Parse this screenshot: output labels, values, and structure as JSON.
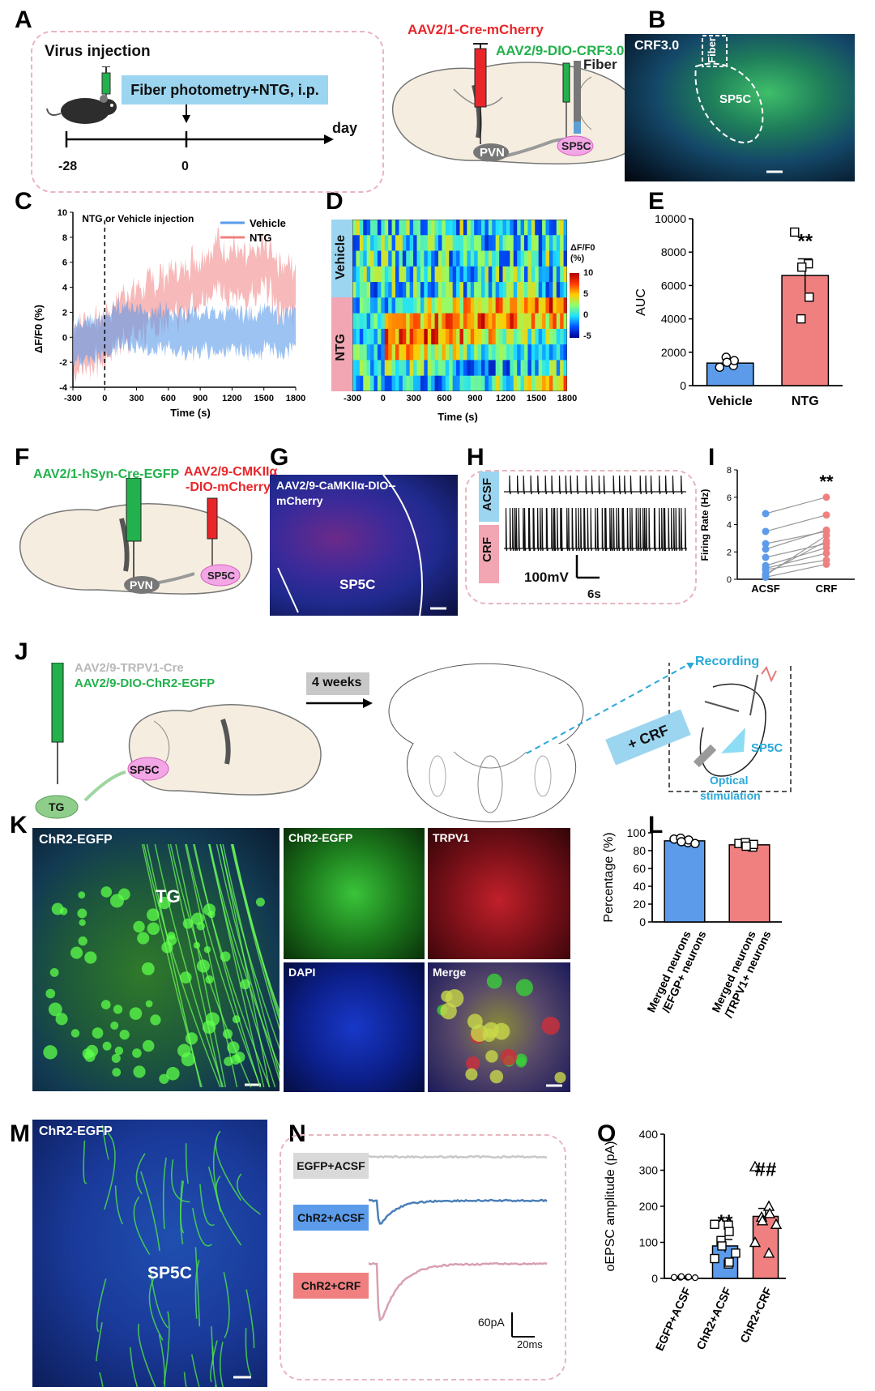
{
  "panels": [
    "A",
    "B",
    "C",
    "D",
    "E",
    "F",
    "G",
    "H",
    "I",
    "J",
    "K",
    "L",
    "M",
    "N",
    "O"
  ],
  "colors": {
    "vehicle": "#5b9bea",
    "ntg": "#f08080",
    "acsf": "#9bd5f0",
    "crf": "#f2a6b3",
    "green": "#22b14c",
    "red": "#e8262a",
    "gray": "#6f6f6f"
  },
  "panelA": {
    "box_title": "Virus injection",
    "banner": "Fiber photometry+NTG, i.p.",
    "axis_label": "day",
    "ticks": [
      "-28",
      "0"
    ],
    "virus1": "AAV2/1-Cre-mCherry",
    "virus2": "AAV2/9-DIO-CRF3.0",
    "fiber": "Fiber",
    "region1": "PVN",
    "region2": "SP5C"
  },
  "panelB": {
    "label": "CRF3.0",
    "fiber": "Fiber",
    "region": "SP5C"
  },
  "panelC": {
    "annotation": "NTG or Vehicle injection",
    "legend": [
      "Vehicle",
      "NTG"
    ],
    "ylabel": "ΔF/F0 (%)",
    "xlabel": "Time (s)",
    "yticks": [
      "10",
      "8",
      "6",
      "4",
      "2",
      "0",
      "-2",
      "-4"
    ],
    "xticks": [
      "-300",
      "0",
      "300",
      "600",
      "900",
      "1200",
      "1500",
      "1800"
    ]
  },
  "panelD": {
    "groups": [
      "Vehicle",
      "NTG"
    ],
    "colorbar_title": "ΔF/F0 (%)",
    "colorbar_ticks": [
      "10",
      "5",
      "0",
      "-5"
    ],
    "xlabel": "Time (s)",
    "xticks": [
      "-300",
      "0",
      "300",
      "600",
      "900",
      "1200",
      "1500",
      "1800"
    ]
  },
  "chart_data": [
    {
      "type": "line",
      "title": "NTG or Vehicle injection",
      "xlabel": "Time (s)",
      "ylabel": "ΔF/F0 (%)",
      "xlim": [
        -300,
        1800
      ],
      "ylim": [
        -4,
        10
      ],
      "series": [
        {
          "name": "Vehicle",
          "x": [
            -300,
            0,
            150,
            300,
            450,
            600,
            750,
            900,
            1050,
            1200,
            1350,
            1500,
            1650,
            1800
          ],
          "values": [
            -0.5,
            0,
            1,
            0.8,
            0.5,
            0.6,
            0.2,
            0.5,
            0.3,
            0.4,
            0.3,
            0.6,
            0.2,
            0.5
          ]
        },
        {
          "name": "NTG",
          "x": [
            -300,
            0,
            150,
            300,
            450,
            600,
            750,
            900,
            1050,
            1200,
            1350,
            1500,
            1650,
            1800
          ],
          "values": [
            -0.5,
            -0.2,
            1.5,
            2,
            2.5,
            3.5,
            3.8,
            4.5,
            6,
            5.2,
            4.3,
            5.8,
            4,
            3.8
          ]
        }
      ]
    },
    {
      "type": "bar",
      "categories": [
        "Vehicle",
        "NTG"
      ],
      "values": [
        1350,
        6600
      ],
      "errors": [
        200,
        1000
      ],
      "ylabel": "AUC",
      "ylim": [
        0,
        10000
      ],
      "yticks": [
        "0",
        "2000",
        "4000",
        "6000",
        "8000",
        "10000"
      ],
      "significance": [
        "",
        "**"
      ],
      "points": [
        [
          1100,
          1200,
          1500,
          1700,
          1400
        ],
        [
          9200,
          7300,
          5300,
          4000,
          7100
        ]
      ]
    },
    {
      "type": "line",
      "categories": [
        "ACSF",
        "CRF"
      ],
      "ylabel": "Firing Rate (Hz)",
      "ylim": [
        0,
        8
      ],
      "yticks": [
        "0",
        "2",
        "4",
        "6",
        "8"
      ],
      "significance": "**",
      "pairs": [
        [
          4.8,
          6.0
        ],
        [
          3.5,
          4.7
        ],
        [
          2.6,
          3.5
        ],
        [
          2.2,
          3.6
        ],
        [
          1.6,
          2.6
        ],
        [
          1.0,
          2.3
        ],
        [
          0.8,
          1.9
        ],
        [
          0.7,
          1.4
        ],
        [
          0.4,
          2.8
        ],
        [
          0.3,
          3.2
        ],
        [
          0.15,
          1.1
        ]
      ]
    },
    {
      "type": "bar",
      "categories": [
        "Merged neurons /EFGP+ neurons",
        "Merged neurons /TRPV1+ neurons"
      ],
      "values": [
        91,
        86.5
      ],
      "errors": [
        1.5,
        1.5
      ],
      "ylabel": "Percentage (%)",
      "ylim": [
        0,
        100
      ],
      "yticks": [
        "0",
        "20",
        "40",
        "60",
        "80",
        "100"
      ],
      "points": [
        [
          93,
          89,
          92,
          94,
          90,
          88
        ],
        [
          88,
          84,
          87,
          89,
          85
        ]
      ]
    },
    {
      "type": "bar",
      "categories": [
        "EGFP+ACSF",
        "ChR2+ACSF",
        "ChR2+CRF"
      ],
      "values": [
        3,
        90,
        172
      ],
      "errors": [
        1,
        18,
        22
      ],
      "ylabel": "oEPSC amplitude (pA)",
      "ylim": [
        0,
        400
      ],
      "yticks": [
        "0",
        "100",
        "200",
        "300",
        "400"
      ],
      "significance": [
        "",
        "**",
        "##"
      ],
      "points": [
        [
          2,
          3,
          4,
          3,
          5,
          2,
          3
        ],
        [
          150,
          148,
          130,
          105,
          90,
          70,
          55,
          40,
          45
        ],
        [
          310,
          200,
          180,
          170,
          160,
          150,
          100,
          70
        ]
      ]
    }
  ],
  "panelF": {
    "virus1": "AAV2/1-hSyn-Cre-EGFP",
    "virus2a": "AAV2/9-CMKIIα",
    "virus2b": "-DIO-mCherry",
    "region1": "PVN",
    "region2": "SP5C"
  },
  "panelG": {
    "label1": "AAV2/9-CaMKIIα-DIO--",
    "label2": "mCherry",
    "region": "SP5C"
  },
  "panelH": {
    "trace1": "ACSF",
    "trace2": "CRF",
    "scale_v": "100mV",
    "scale_t": "6s"
  },
  "panelJ": {
    "virus1": "AAV2/9-TRPV1-Cre",
    "virus2": "AAV2/9-DIO-ChR2-EGFP",
    "region1": "SP5C",
    "region2": "TG",
    "arrow": "4 weeks",
    "banner": "+ CRF",
    "recording": "Recording",
    "region3": "SP5C",
    "optical1": "Optical",
    "optical2": "stimulation"
  },
  "panelK": {
    "main": "ChR2-EGFP",
    "region": "TG",
    "sub1": "ChR2-EGFP",
    "sub2": "TRPV1",
    "sub3": "DAPI",
    "sub4": "Merge"
  },
  "panelM": {
    "main": "ChR2-EGFP",
    "region": "SP5C"
  },
  "panelN": {
    "trace1": "EGFP+ACSF",
    "trace2": "ChR2+ACSF",
    "trace3": "ChR2+CRF",
    "scale_a": "60pA",
    "scale_t": "20ms"
  }
}
